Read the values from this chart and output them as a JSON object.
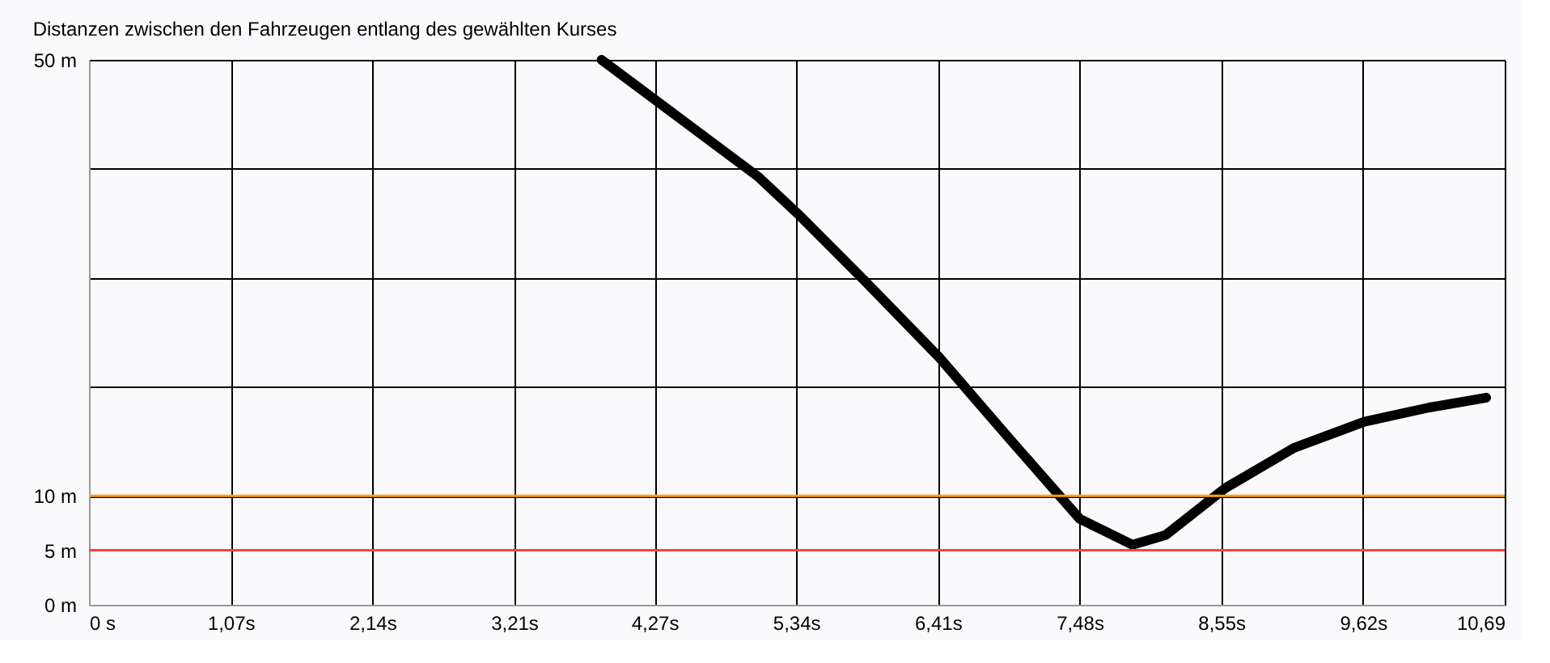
{
  "chart_data": {
    "type": "line",
    "title": "Distanzen zwischen den Fahrzeugen entlang des gewählten Kurses",
    "x": [
      3.87,
      5.05,
      5.35,
      5.86,
      6.42,
      6.96,
      7.48,
      7.88,
      8.13,
      8.58,
      9.1,
      9.63,
      10.12,
      10.55
    ],
    "series": [
      {
        "color": "#000000",
        "values": [
          50,
          39.3,
          35.9,
          29.7,
          22.7,
          15.1,
          7.9,
          5.5,
          6.4,
          10.7,
          14.4,
          16.8,
          18.1,
          19.0
        ]
      }
    ],
    "xlim": [
      0,
      10.69
    ],
    "xticks": [
      {
        "value": 0,
        "label": "0 s"
      },
      {
        "value": 1.07,
        "label": "1,07s"
      },
      {
        "value": 2.14,
        "label": "2,14s"
      },
      {
        "value": 3.21,
        "label": "3,21s"
      },
      {
        "value": 4.27,
        "label": "4,27s"
      },
      {
        "value": 5.34,
        "label": "5,34s"
      },
      {
        "value": 6.41,
        "label": "6,41s"
      },
      {
        "value": 7.48,
        "label": "7,48s"
      },
      {
        "value": 8.55,
        "label": "8,55s"
      },
      {
        "value": 9.62,
        "label": "9,62s"
      },
      {
        "value": 10.69,
        "label": "10,69"
      }
    ],
    "ylim": [
      0,
      50
    ],
    "yticks": [
      {
        "value": 0,
        "label": "0 m"
      },
      {
        "value": 5,
        "label": "5 m"
      },
      {
        "value": 10,
        "label": "10 m"
      },
      {
        "value": 20,
        "label": null
      },
      {
        "value": 30,
        "label": null
      },
      {
        "value": 40,
        "label": null
      },
      {
        "value": 50,
        "label": "50 m"
      }
    ],
    "ref_lines": [
      {
        "axis": "y",
        "value": 10,
        "label": null,
        "color": "#ffa500"
      },
      {
        "axis": "y",
        "value": 5,
        "label": null,
        "color": "#ff4040"
      }
    ],
    "grid": true,
    "marker": "none",
    "line_style": "solid"
  }
}
